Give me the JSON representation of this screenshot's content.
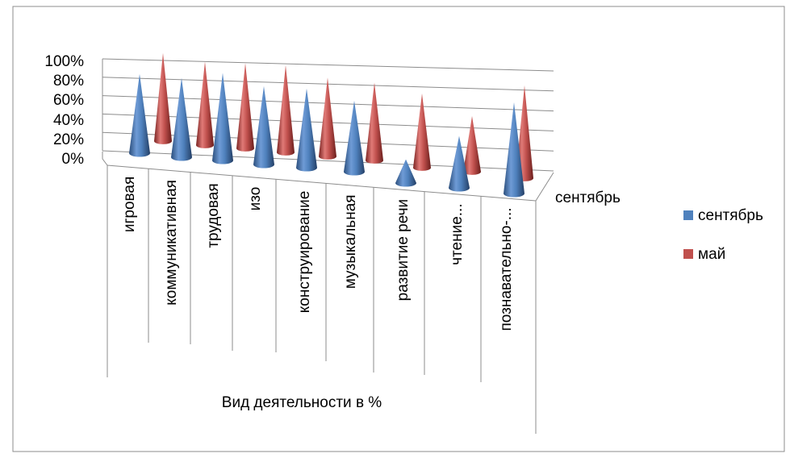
{
  "chart_data": {
    "type": "bar",
    "shape": "cone-3d",
    "title": "",
    "xlabel": "Вид деятельности в %",
    "ylabel": "",
    "categories": [
      "игровая",
      "коммуникативная",
      "трудовая",
      "изо",
      "конструирование",
      "музыкальная",
      "развитие речи",
      "чтение...",
      "познавательно-..."
    ],
    "series": [
      {
        "name": "сентябрь",
        "color": "#4F81BD",
        "values": [
          0.87,
          0.87,
          0.96,
          0.86,
          0.87,
          0.78,
          0.26,
          0.57,
          1.0
        ]
      },
      {
        "name": "май",
        "color": "#C0504D",
        "values": [
          0.95,
          0.9,
          0.92,
          0.94,
          0.85,
          0.84,
          0.8,
          0.6,
          1.0
        ]
      }
    ],
    "y_ticks": [
      "0%",
      "20%",
      "40%",
      "60%",
      "80%",
      "100%"
    ],
    "ylim": [
      0,
      1
    ],
    "depth_axis_label": "сентябрь",
    "legend_position": "right",
    "grid": true
  }
}
